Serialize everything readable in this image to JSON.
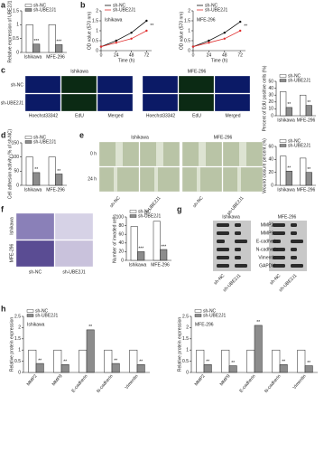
{
  "chart_data": [
    {
      "type": "bar",
      "panel": "a",
      "ylabel": "Relative expression of UBE2J1",
      "categories": [
        "Ishikawa",
        "MFE-296"
      ],
      "series": [
        {
          "name": "sh-NC",
          "color": "#ffffff",
          "values": [
            1.0,
            1.0
          ]
        },
        {
          "name": "sh-UBE2J1",
          "color": "#8c8c8c",
          "values": [
            0.3,
            0.28
          ]
        }
      ],
      "annotations": [
        "***",
        "***"
      ],
      "ylim": [
        0,
        1.5
      ],
      "yticks": [
        0,
        0.5,
        1.0,
        1.5
      ]
    },
    {
      "type": "line",
      "panel": "b",
      "title": "Ishikawa",
      "xlabel": "Time (h)",
      "ylabel": "OD value (570 nm)",
      "x": [
        0,
        24,
        48,
        72
      ],
      "series": [
        {
          "name": "sh-NC",
          "color": "#111111",
          "values": [
            0.2,
            0.5,
            0.9,
            1.5
          ]
        },
        {
          "name": "sh-UBE2J1",
          "color": "#e03030",
          "values": [
            0.2,
            0.4,
            0.6,
            1.0
          ]
        }
      ],
      "annotations": [
        "**"
      ],
      "xlim": [
        0,
        80
      ],
      "xticks": [
        0,
        24,
        48,
        72
      ],
      "ylim": [
        0,
        2
      ],
      "yticks": [
        0,
        0.5,
        1.0,
        1.5,
        2.0
      ]
    },
    {
      "type": "line",
      "title": "MFE-296",
      "xlabel": "Time (h)",
      "ylabel": "OD value (570 nm)",
      "x": [
        0,
        24,
        48,
        72
      ],
      "series": [
        {
          "name": "sh-NC",
          "color": "#111111",
          "values": [
            0.2,
            0.5,
            0.9,
            1.45
          ]
        },
        {
          "name": "sh-UBE2J1",
          "color": "#e03030",
          "values": [
            0.2,
            0.4,
            0.6,
            1.0
          ]
        }
      ],
      "annotations": [
        "**"
      ],
      "xlim": [
        0,
        80
      ],
      "xticks": [
        0,
        24,
        48,
        72
      ],
      "ylim": [
        0,
        2
      ],
      "yticks": [
        0,
        0.5,
        1.0,
        1.5,
        2.0
      ]
    },
    {
      "type": "bar",
      "ylabel": "Percent of EdU positive cells (%)",
      "categories": [
        "Ishikawa",
        "MFE-296"
      ],
      "series": [
        {
          "name": "sh-NC",
          "color": "#ffffff",
          "values": [
            35,
            30
          ]
        },
        {
          "name": "sh-UBE2J1",
          "color": "#8c8c8c",
          "values": [
            12,
            15
          ]
        }
      ],
      "annotations": [
        "**",
        "**"
      ],
      "ylim": [
        0,
        50
      ],
      "yticks": [
        0,
        10,
        20,
        30,
        40,
        50
      ]
    },
    {
      "type": "bar",
      "panel": "d",
      "ylabel": "Cell adhesion activity (% of sh-NC)",
      "categories": [
        "Ishikawa",
        "MFE-296"
      ],
      "series": [
        {
          "name": "sh-NC",
          "color": "#ffffff",
          "values": [
            100,
            100
          ]
        },
        {
          "name": "sh-UBE2J1",
          "color": "#8c8c8c",
          "values": [
            45,
            40
          ]
        }
      ],
      "annotations": [
        "**",
        "**"
      ],
      "ylim": [
        0,
        150
      ],
      "yticks": [
        0,
        50,
        100,
        150
      ]
    },
    {
      "type": "bar",
      "ylabel": "Wound closure percent (%)",
      "categories": [
        "Ishikawa",
        "MFE-296"
      ],
      "series": [
        {
          "name": "sh-NC",
          "color": "#ffffff",
          "values": [
            45,
            42
          ]
        },
        {
          "name": "sh-UBE2J1",
          "color": "#8c8c8c",
          "values": [
            22,
            20
          ]
        }
      ],
      "annotations": [
        "**",
        "**"
      ],
      "ylim": [
        0,
        60
      ],
      "yticks": [
        0,
        20,
        40,
        60
      ]
    },
    {
      "type": "bar",
      "ylabel": "Number of invaded cells",
      "categories": [
        "Ishikawa",
        "MFE-296"
      ],
      "series": [
        {
          "name": "sh-NC",
          "color": "#ffffff",
          "values": [
            78,
            90
          ]
        },
        {
          "name": "sh-UBE2J1",
          "color": "#8c8c8c",
          "values": [
            20,
            25
          ]
        }
      ],
      "annotations": [
        "***",
        "***"
      ],
      "ylim": [
        0,
        100
      ],
      "yticks": [
        0,
        20,
        40,
        60,
        80,
        100
      ]
    },
    {
      "type": "bar",
      "panel": "h",
      "title": "Ishikawa",
      "ylabel": "Relative protein expression",
      "categories": [
        "MMP2",
        "MMP9",
        "E-cadherin",
        "N-cadherin",
        "Vimentin"
      ],
      "series": [
        {
          "name": "sh-NC",
          "color": "#ffffff",
          "values": [
            1,
            1,
            1,
            1,
            1
          ]
        },
        {
          "name": "sh-UBE2J1",
          "color": "#8c8c8c",
          "values": [
            0.4,
            0.35,
            1.9,
            0.4,
            0.35
          ]
        }
      ],
      "annotations": [
        "**",
        "**",
        "**",
        "**",
        "**"
      ],
      "ylim": [
        0,
        2.5
      ],
      "yticks": [
        0,
        0.5,
        1.0,
        1.5,
        2.0,
        2.5
      ]
    },
    {
      "type": "bar",
      "title": "MFE-296",
      "ylabel": "Relative protein expression",
      "categories": [
        "MMP2",
        "MMP9",
        "E-cadherin",
        "N-cadherin",
        "Vimentin"
      ],
      "series": [
        {
          "name": "sh-NC",
          "color": "#ffffff",
          "values": [
            1,
            1,
            1,
            1,
            1
          ]
        },
        {
          "name": "sh-UBE2J1",
          "color": "#8c8c8c",
          "values": [
            0.35,
            0.3,
            2.1,
            0.35,
            0.3
          ]
        }
      ],
      "annotations": [
        "**",
        "**",
        "**",
        "**",
        "**"
      ],
      "ylim": [
        0,
        2.5
      ],
      "yticks": [
        0,
        0.5,
        1.0,
        1.5,
        2.0,
        2.5
      ]
    }
  ],
  "panel_c": {
    "label": "c",
    "groups": [
      "Ishikawa",
      "MFE-296"
    ],
    "rows": [
      "sh-NC",
      "sh-UBE2J1"
    ],
    "columns": [
      "Hoechst33342",
      "EdU",
      "Merged"
    ]
  },
  "panel_e": {
    "label": "e",
    "groups": [
      "Ishikawa",
      "MFE-296"
    ],
    "rows": [
      "0 h",
      "24 h"
    ],
    "columns": [
      "sh-NC",
      "sh-UBE2J1"
    ]
  },
  "panel_f": {
    "label": "f",
    "rows": [
      "Ishikawa",
      "MFE-296"
    ],
    "columns": [
      "sh-NC",
      "sh-UBE2J1"
    ]
  },
  "panel_g": {
    "label": "g",
    "groups": [
      "Ishikawa",
      "MFE-296"
    ],
    "proteins": [
      "MMP2",
      "MMP9",
      "E-cadherin",
      "N-cadherin",
      "Vimentin",
      "GAPDH"
    ],
    "columns": [
      "sh-NC",
      "sh-UBE2J1"
    ]
  }
}
